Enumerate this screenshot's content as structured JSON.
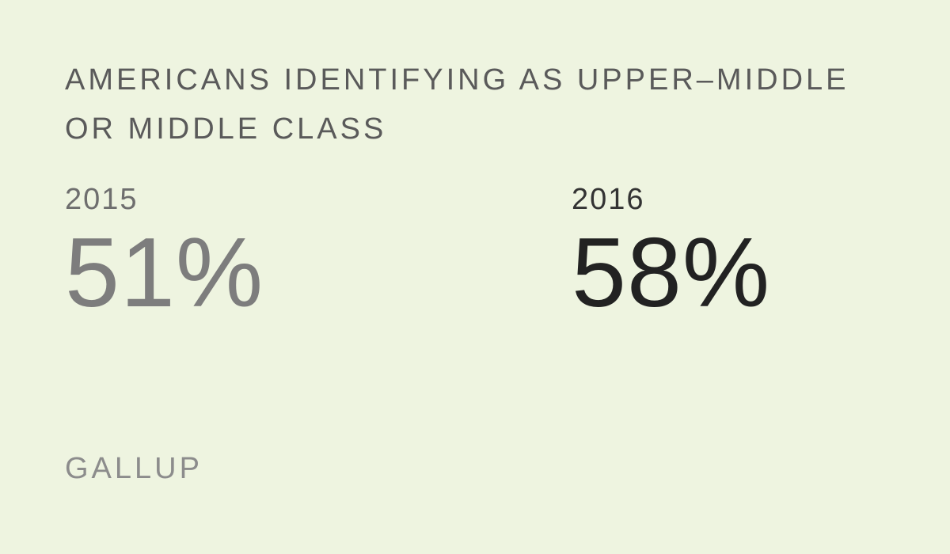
{
  "chart_data": {
    "type": "table",
    "title": "AMERICANS IDENTIFYING AS UPPER–MIDDLE OR MIDDLE CLASS",
    "categories": [
      "2015",
      "2016"
    ],
    "values": [
      51,
      58
    ],
    "value_labels": [
      "51%",
      "58%"
    ],
    "unit": "%"
  },
  "source": "GALLUP",
  "colors": {
    "background": "#eef4e0",
    "value_2015": "#7d7d7d",
    "value_2016": "#222222",
    "title": "#5a5a5a"
  }
}
